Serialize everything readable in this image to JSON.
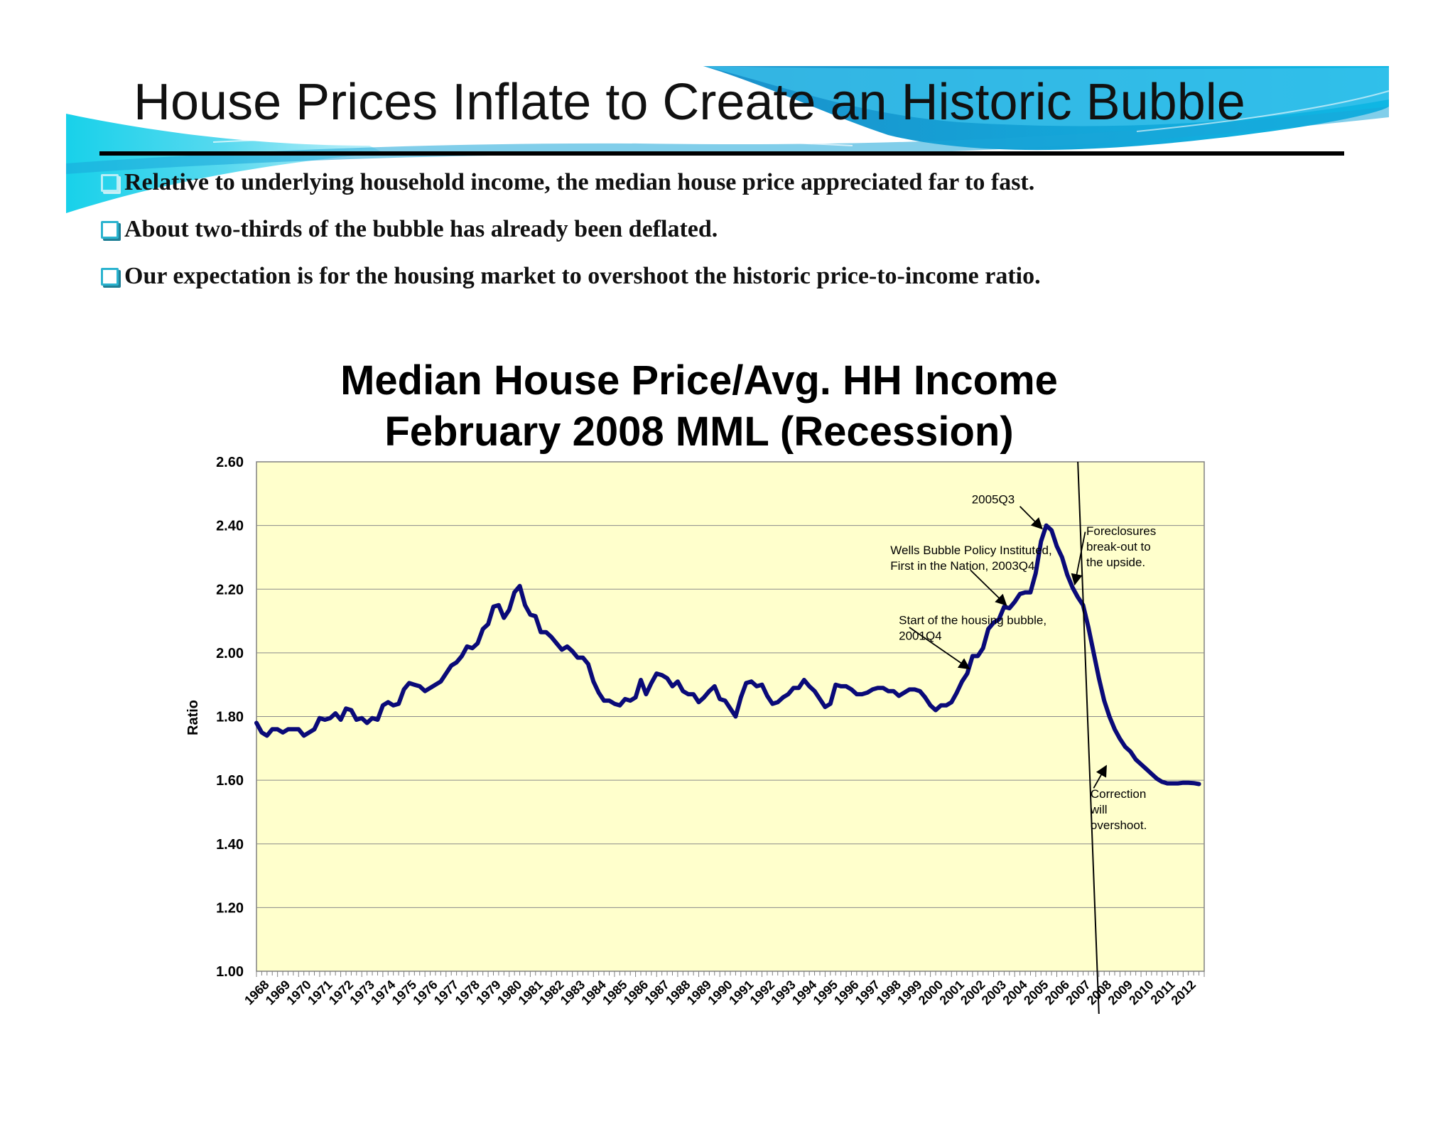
{
  "slide": {
    "title": "House Prices Inflate to Create an Historic Bubble",
    "bullets": [
      "Relative to underlying household income, the median house price appreciated far to fast.",
      "About two-thirds of the bubble has already been deflated.",
      "Our expectation is for the housing market to overshoot the historic price-to-income ratio."
    ],
    "colors": {
      "banner_dark": "#0a6aa8",
      "banner_light": "#3fd6ee",
      "bullet_box": "#2bb3cf"
    }
  },
  "chart_data": {
    "type": "line",
    "title": "Median House Price/Avg. HH Income",
    "subtitle": "February 2008 MML (Recession)",
    "ylabel": "Ratio",
    "xlabel": "",
    "ylim": [
      1.0,
      2.6
    ],
    "xlim": [
      1968.0,
      2013.0
    ],
    "y_ticks": [
      "1.00",
      "1.20",
      "1.40",
      "1.60",
      "1.80",
      "2.00",
      "2.20",
      "2.40",
      "2.60"
    ],
    "x_tick_labels": [
      "1968",
      "1969",
      "1970",
      "1971",
      "1972",
      "1973",
      "1974",
      "1975",
      "1976",
      "1977",
      "1978",
      "1979",
      "1980",
      "1981",
      "1982",
      "1983",
      "1984",
      "1985",
      "1986",
      "1987",
      "1988",
      "1989",
      "1990",
      "1991",
      "1992",
      "1993",
      "1994",
      "1995",
      "1996",
      "1997",
      "1998",
      "1999",
      "2000",
      "2001",
      "2002",
      "2003",
      "2004",
      "2005",
      "2006",
      "2007",
      "2008",
      "2009",
      "2010",
      "2011",
      "2012"
    ],
    "grid": true,
    "plot_background": "#ffffcc",
    "series": [
      {
        "color": "#0a0a78",
        "points": [
          [
            1968.0,
            1.78
          ],
          [
            1968.25,
            1.75
          ],
          [
            1968.5,
            1.74
          ],
          [
            1968.75,
            1.76
          ],
          [
            1969.0,
            1.76
          ],
          [
            1969.25,
            1.75
          ],
          [
            1969.5,
            1.76
          ],
          [
            1969.75,
            1.76
          ],
          [
            1970.0,
            1.76
          ],
          [
            1970.25,
            1.74
          ],
          [
            1970.5,
            1.75
          ],
          [
            1970.75,
            1.76
          ],
          [
            1971.0,
            1.795
          ],
          [
            1971.25,
            1.79
          ],
          [
            1971.5,
            1.795
          ],
          [
            1971.75,
            1.81
          ],
          [
            1972.0,
            1.79
          ],
          [
            1972.25,
            1.825
          ],
          [
            1972.5,
            1.82
          ],
          [
            1972.75,
            1.79
          ],
          [
            1973.0,
            1.795
          ],
          [
            1973.25,
            1.78
          ],
          [
            1973.5,
            1.795
          ],
          [
            1973.75,
            1.79
          ],
          [
            1974.0,
            1.835
          ],
          [
            1974.25,
            1.845
          ],
          [
            1974.5,
            1.835
          ],
          [
            1974.75,
            1.84
          ],
          [
            1975.0,
            1.885
          ],
          [
            1975.25,
            1.905
          ],
          [
            1975.5,
            1.9
          ],
          [
            1975.75,
            1.895
          ],
          [
            1976.0,
            1.88
          ],
          [
            1976.25,
            1.89
          ],
          [
            1976.5,
            1.9
          ],
          [
            1976.75,
            1.91
          ],
          [
            1977.0,
            1.935
          ],
          [
            1977.25,
            1.96
          ],
          [
            1977.5,
            1.97
          ],
          [
            1977.75,
            1.99
          ],
          [
            1978.0,
            2.02
          ],
          [
            1978.25,
            2.015
          ],
          [
            1978.5,
            2.03
          ],
          [
            1978.75,
            2.075
          ],
          [
            1979.0,
            2.09
          ],
          [
            1979.25,
            2.145
          ],
          [
            1979.5,
            2.15
          ],
          [
            1979.75,
            2.11
          ],
          [
            1980.0,
            2.135
          ],
          [
            1980.25,
            2.19
          ],
          [
            1980.5,
            2.21
          ],
          [
            1980.75,
            2.15
          ],
          [
            1981.0,
            2.12
          ],
          [
            1981.25,
            2.115
          ],
          [
            1981.5,
            2.065
          ],
          [
            1981.75,
            2.065
          ],
          [
            1982.0,
            2.05
          ],
          [
            1982.25,
            2.03
          ],
          [
            1982.5,
            2.01
          ],
          [
            1982.75,
            2.02
          ],
          [
            1983.0,
            2.005
          ],
          [
            1983.25,
            1.985
          ],
          [
            1983.5,
            1.985
          ],
          [
            1983.75,
            1.965
          ],
          [
            1984.0,
            1.91
          ],
          [
            1984.25,
            1.875
          ],
          [
            1984.5,
            1.85
          ],
          [
            1984.75,
            1.85
          ],
          [
            1985.0,
            1.84
          ],
          [
            1985.25,
            1.835
          ],
          [
            1985.5,
            1.855
          ],
          [
            1985.75,
            1.85
          ],
          [
            1986.0,
            1.86
          ],
          [
            1986.25,
            1.915
          ],
          [
            1986.5,
            1.87
          ],
          [
            1986.75,
            1.905
          ],
          [
            1987.0,
            1.935
          ],
          [
            1987.25,
            1.93
          ],
          [
            1987.5,
            1.92
          ],
          [
            1987.75,
            1.895
          ],
          [
            1988.0,
            1.91
          ],
          [
            1988.25,
            1.88
          ],
          [
            1988.5,
            1.87
          ],
          [
            1988.75,
            1.87
          ],
          [
            1989.0,
            1.845
          ],
          [
            1989.25,
            1.86
          ],
          [
            1989.5,
            1.88
          ],
          [
            1989.75,
            1.895
          ],
          [
            1990.0,
            1.855
          ],
          [
            1990.25,
            1.85
          ],
          [
            1990.5,
            1.825
          ],
          [
            1990.75,
            1.8
          ],
          [
            1991.0,
            1.86
          ],
          [
            1991.25,
            1.905
          ],
          [
            1991.5,
            1.91
          ],
          [
            1991.75,
            1.895
          ],
          [
            1992.0,
            1.9
          ],
          [
            1992.25,
            1.865
          ],
          [
            1992.5,
            1.84
          ],
          [
            1992.75,
            1.845
          ],
          [
            1993.0,
            1.86
          ],
          [
            1993.25,
            1.87
          ],
          [
            1993.5,
            1.89
          ],
          [
            1993.75,
            1.89
          ],
          [
            1994.0,
            1.915
          ],
          [
            1994.25,
            1.895
          ],
          [
            1994.5,
            1.88
          ],
          [
            1994.75,
            1.855
          ],
          [
            1995.0,
            1.83
          ],
          [
            1995.25,
            1.84
          ],
          [
            1995.5,
            1.9
          ],
          [
            1995.75,
            1.895
          ],
          [
            1996.0,
            1.895
          ],
          [
            1996.25,
            1.885
          ],
          [
            1996.5,
            1.87
          ],
          [
            1996.75,
            1.87
          ],
          [
            1997.0,
            1.875
          ],
          [
            1997.25,
            1.885
          ],
          [
            1997.5,
            1.89
          ],
          [
            1997.75,
            1.89
          ],
          [
            1998.0,
            1.88
          ],
          [
            1998.25,
            1.88
          ],
          [
            1998.5,
            1.865
          ],
          [
            1998.75,
            1.875
          ],
          [
            1999.0,
            1.885
          ],
          [
            1999.25,
            1.885
          ],
          [
            1999.5,
            1.88
          ],
          [
            1999.75,
            1.86
          ],
          [
            2000.0,
            1.835
          ],
          [
            2000.25,
            1.82
          ],
          [
            2000.5,
            1.835
          ],
          [
            2000.75,
            1.835
          ],
          [
            2001.0,
            1.845
          ],
          [
            2001.25,
            1.875
          ],
          [
            2001.5,
            1.91
          ],
          [
            2001.75,
            1.935
          ],
          [
            2002.0,
            1.99
          ],
          [
            2002.25,
            1.99
          ],
          [
            2002.5,
            2.015
          ],
          [
            2002.75,
            2.075
          ],
          [
            2003.0,
            2.095
          ],
          [
            2003.25,
            2.105
          ],
          [
            2003.5,
            2.145
          ],
          [
            2003.75,
            2.14
          ],
          [
            2004.0,
            2.16
          ],
          [
            2004.25,
            2.185
          ],
          [
            2004.5,
            2.19
          ],
          [
            2004.75,
            2.19
          ],
          [
            2005.0,
            2.25
          ],
          [
            2005.25,
            2.35
          ],
          [
            2005.5,
            2.4
          ],
          [
            2005.75,
            2.385
          ],
          [
            2006.0,
            2.335
          ],
          [
            2006.25,
            2.3
          ],
          [
            2006.5,
            2.245
          ],
          [
            2006.75,
            2.205
          ],
          [
            2007.0,
            2.175
          ],
          [
            2007.25,
            2.15
          ],
          [
            2007.5,
            2.08
          ],
          [
            2007.75,
            2.0
          ],
          [
            2008.0,
            1.92
          ],
          [
            2008.25,
            1.85
          ],
          [
            2008.5,
            1.8
          ],
          [
            2008.75,
            1.76
          ],
          [
            2009.0,
            1.73
          ],
          [
            2009.25,
            1.705
          ],
          [
            2009.5,
            1.69
          ],
          [
            2009.75,
            1.665
          ],
          [
            2010.0,
            1.65
          ],
          [
            2010.25,
            1.635
          ],
          [
            2010.5,
            1.62
          ],
          [
            2010.75,
            1.605
          ],
          [
            2011.0,
            1.595
          ],
          [
            2011.25,
            1.59
          ],
          [
            2011.5,
            1.59
          ],
          [
            2011.75,
            1.59
          ],
          [
            2012.0,
            1.592
          ],
          [
            2012.25,
            1.592
          ],
          [
            2012.5,
            1.591
          ],
          [
            2012.75,
            1.588
          ]
        ]
      }
    ],
    "reference_line": {
      "x_top": 2007.0,
      "x_bottom": 2008.0,
      "y_top": 2.6,
      "y_bottom": 1.0
    },
    "annotations": [
      {
        "lines": [
          "2005Q3"
        ],
        "anchor": "end",
        "label_at": [
          2004.0,
          2.47
        ],
        "arrow_from": [
          2004.25,
          2.46
        ],
        "arrow_to": [
          2005.3,
          2.39
        ]
      },
      {
        "lines": [
          "Wells Bubble Policy Instituted,",
          "First in the Nation, 2003Q4"
        ],
        "anchor": "start",
        "label_at": [
          1998.1,
          2.31
        ],
        "arrow_from": [
          2001.9,
          2.26
        ],
        "arrow_to": [
          2003.6,
          2.15
        ]
      },
      {
        "lines": [
          "Start of the housing bubble,",
          "2001Q4"
        ],
        "anchor": "start",
        "label_at": [
          1998.5,
          2.09
        ],
        "arrow_from": [
          1999.0,
          2.08
        ],
        "arrow_to": [
          2001.85,
          1.95
        ]
      },
      {
        "lines": [
          "Foreclosures",
          "break-out to",
          "the upside."
        ],
        "anchor": "start",
        "label_at": [
          2007.4,
          2.37
        ],
        "arrow_from": [
          2007.35,
          2.38
        ],
        "arrow_to": [
          2006.85,
          2.215
        ]
      },
      {
        "lines": [
          "Correction",
          "will",
          "overshoot."
        ],
        "anchor": "start",
        "label_at": [
          2007.6,
          1.545
        ],
        "arrow_from": [
          2007.75,
          1.575
        ],
        "arrow_to": [
          2008.35,
          1.645
        ]
      }
    ]
  }
}
